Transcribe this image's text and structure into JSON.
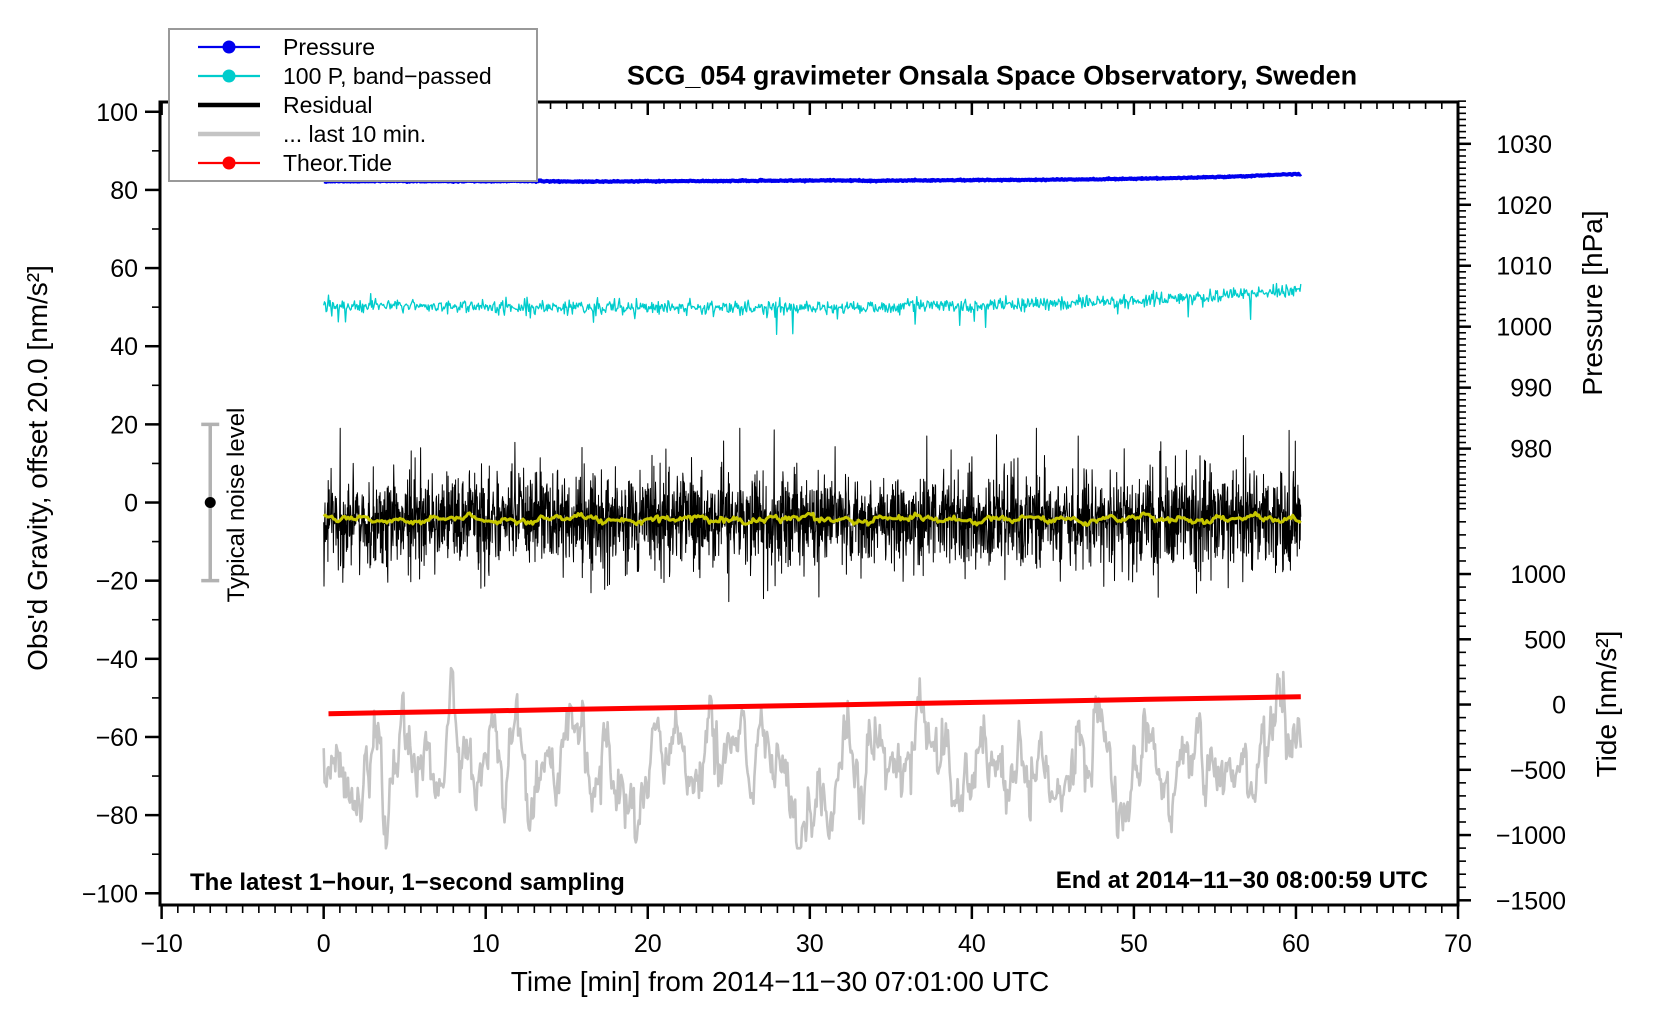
{
  "title": "SCG_054 gravimeter Onsala Space Observatory, Sweden",
  "axis_labels": {
    "x": "Time [min] from 2014−11−30 07:01:00 UTC",
    "gravity": "Obs'd Gravity, offset 20.0 [nm/s²]",
    "pressure": "Pressure [hPa]",
    "tide": "Tide [nm/s²]"
  },
  "annotations": {
    "sampling_note": "The latest 1−hour, 1−second sampling",
    "end_time_note": "End at 2014−11−30 08:00:59 UTC",
    "noise_bar_label": "Typical noise level"
  },
  "legend": {
    "entries": [
      {
        "label": "Pressure",
        "color": "#0000ee",
        "marker": true,
        "thick": false
      },
      {
        "label": "100 P, band−passed",
        "color": "#00cccc",
        "marker": true,
        "thick": false
      },
      {
        "label": "Residual",
        "color": "#000000",
        "marker": false,
        "thick": true
      },
      {
        "label": "... last 10 min.",
        "color": "#c4c4c4",
        "marker": false,
        "thick": true
      },
      {
        "label": "Theor.Tide",
        "color": "#ff0000",
        "marker": true,
        "thick": false
      }
    ]
  },
  "chart_data": {
    "type": "line",
    "x_axis": {
      "min": -10.1,
      "max": 70.0,
      "minor_step": 1,
      "major_ticks": [
        -10,
        0,
        10,
        20,
        30,
        40,
        50,
        60,
        70
      ],
      "tick_labels": [
        "−10",
        "0",
        "10",
        "20",
        "30",
        "40",
        "50",
        "60",
        "70"
      ]
    },
    "gravity_axis": {
      "min": -103.0,
      "max": 102.5,
      "minor_step": 10,
      "major_ticks": [
        100,
        80,
        60,
        40,
        20,
        0,
        -20,
        -40,
        -60,
        -80,
        -100
      ],
      "tick_labels": [
        "100",
        "80",
        "60",
        "40",
        "20",
        "0",
        "−20",
        "−40",
        "−60",
        "−80",
        "−100"
      ]
    },
    "pressure_axis": {
      "major_ticks": [
        1030,
        1020,
        1010,
        1000,
        990,
        980
      ],
      "tick_labels": [
        "1030",
        "1020",
        "1010",
        "1000",
        "990",
        "980"
      ],
      "minor_step": 1,
      "minor_range": [
        971,
        1037
      ],
      "map": {
        "v0": 980,
        "g0": 13.8,
        "v1": 1030,
        "g1": 91.8
      }
    },
    "tide_axis": {
      "major_ticks": [
        1000,
        500,
        0,
        -500,
        -1000,
        -1500
      ],
      "tick_labels": [
        "1000",
        "500",
        "0",
        "−500",
        "−1000",
        "−1500"
      ],
      "minor_step": 100,
      "minor_range": [
        -1500,
        1500
      ],
      "map": {
        "v0": 0,
        "g0": -51.7,
        "v1": 500,
        "g1": -35.0
      }
    },
    "noise_bar": {
      "t": -7.0,
      "center": 0,
      "half_range": 20,
      "bar_color": "#b2b2b2",
      "dot_color": "#000000"
    },
    "series": [
      {
        "id": "residual",
        "name": "Residual",
        "axis": "gravity",
        "color": "#000000",
        "width": 1,
        "t0": 0,
        "t1": 60.3,
        "dt": 0.02,
        "seed": 33,
        "noise": 6.2,
        "anchors": [
          [
            0,
            -4.6
          ],
          [
            30,
            -4.3
          ],
          [
            60.3,
            -4.2
          ]
        ],
        "spikes": {
          "both_p": 0.012,
          "both_min": 7,
          "both_max": 18
        },
        "clamp": [
          -26,
          19
        ]
      },
      {
        "id": "residual_smoothed",
        "name": "Residual smoothed",
        "axis": "gravity",
        "color": "#c6c600",
        "width": 3,
        "t0": 0,
        "t1": 60.3,
        "dt": 0.1,
        "seed": 44,
        "noise": 0.3,
        "anchors": [
          [
            0,
            -4.4
          ],
          [
            60.3,
            -4.2
          ]
        ],
        "wave": [
          {
            "a": 0.5,
            "per": 7,
            "ph": 0.5
          },
          {
            "a": 0.45,
            "per": 2.3,
            "ph": 1.7
          },
          {
            "a": 0.35,
            "per": 1.1,
            "ph": 0.3
          }
        ]
      },
      {
        "id": "last10",
        "name": "... last 10 min.",
        "axis": "gravity",
        "color": "#c4c4c4",
        "width": 2.6,
        "t0": 0,
        "t1": 60.3,
        "dt": 0.06,
        "seed": 55,
        "noise": 0.8,
        "anchors": [
          [
            0,
            -66.5
          ],
          [
            30,
            -66
          ],
          [
            60.3,
            -64.5
          ]
        ],
        "ou": {
          "rho": 0.86,
          "amp": 8
        },
        "spikes": {
          "down_p": 0.005,
          "down_min": 6,
          "down_max": 14
        },
        "clamp": [
          -88.5,
          -42
        ]
      },
      {
        "id": "tide",
        "name": "Theor.Tide",
        "axis": "tide",
        "color": "#ff0000",
        "width": 5,
        "t0": 0.3,
        "t1": 60.3,
        "dt": 5,
        "seed": 66,
        "noise": 0,
        "anchors": [
          [
            0.3,
            -70
          ],
          [
            60.3,
            60
          ]
        ]
      },
      {
        "id": "bandpassed",
        "name": "100 P, band−passed",
        "axis": "gravity",
        "color": "#00cccc",
        "width": 1.3,
        "t0": 0,
        "t1": 60.3,
        "dt": 0.05,
        "seed": 22,
        "noise": 0.85,
        "anchors": [
          [
            0,
            50.4
          ],
          [
            8,
            50.2
          ],
          [
            16,
            49.9
          ],
          [
            24,
            49.8
          ],
          [
            30,
            49.9
          ],
          [
            36,
            50.2
          ],
          [
            42,
            50.7
          ],
          [
            48,
            51.3
          ],
          [
            52,
            52.0
          ],
          [
            56,
            53.0
          ],
          [
            60.3,
            54.3
          ]
        ],
        "spikes": {
          "down_p": 0.01,
          "down_min": 2.5,
          "down_max": 6.5,
          "up_p": 0.005,
          "up_min": 1.5,
          "up_max": 3
        }
      },
      {
        "id": "pressure",
        "name": "Pressure",
        "axis": "pressure",
        "color": "#0000ee",
        "width": 4,
        "t0": 0,
        "t1": 60.3,
        "dt": 0.05,
        "seed": 11,
        "noise": 0.045,
        "anchors": [
          [
            0,
            1023.85
          ],
          [
            4,
            1023.9
          ],
          [
            8,
            1023.85
          ],
          [
            12,
            1023.9
          ],
          [
            16,
            1023.8
          ],
          [
            20,
            1023.85
          ],
          [
            24,
            1023.9
          ],
          [
            28,
            1023.95
          ],
          [
            32,
            1024.0
          ],
          [
            34,
            1023.9
          ],
          [
            36,
            1024.0
          ],
          [
            40,
            1024.05
          ],
          [
            44,
            1024.1
          ],
          [
            48,
            1024.2
          ],
          [
            52,
            1024.35
          ],
          [
            55,
            1024.55
          ],
          [
            57,
            1024.7
          ],
          [
            59,
            1024.95
          ],
          [
            60.3,
            1025.05
          ]
        ]
      }
    ]
  }
}
